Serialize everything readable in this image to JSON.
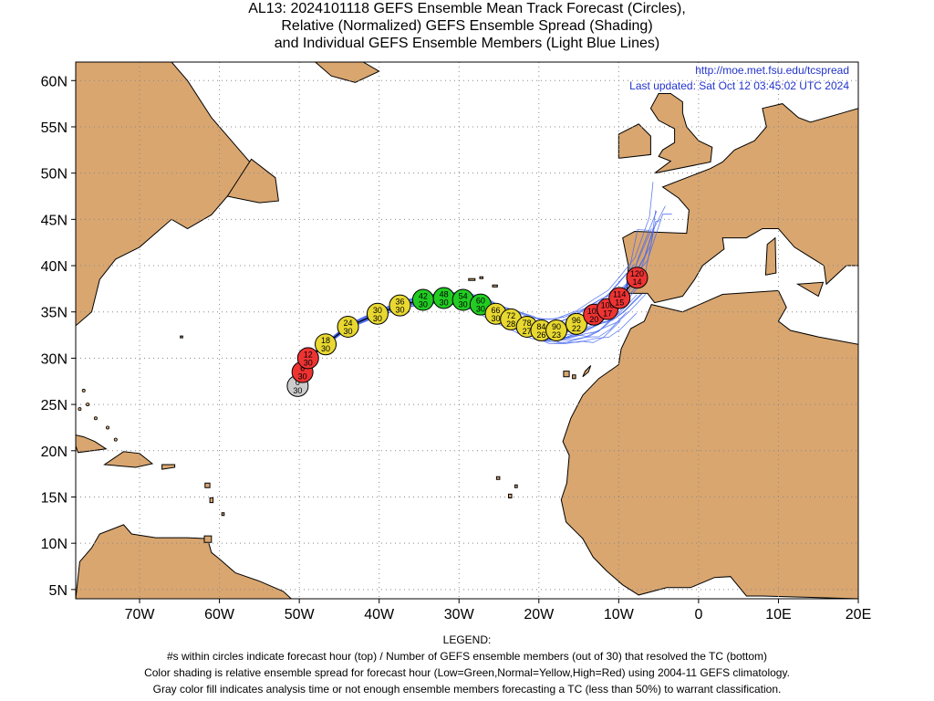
{
  "title": {
    "line1": "AL13: 2024101118 GEFS Ensemble Mean Track Forecast (Circles),",
    "line2": "Relative (Normalized) GEFS Ensemble Spread (Shading)",
    "line3": "and Individual GEFS Ensemble Members (Light Blue Lines)"
  },
  "info": {
    "url": "http://moe.met.fsu.edu/tcspread",
    "updated": "Last updated: Sat Oct 12 03:45:02 UTC 2024"
  },
  "axes": {
    "lat_ticks": [
      {
        "value": 60,
        "label": "60N"
      },
      {
        "value": 55,
        "label": "55N"
      },
      {
        "value": 50,
        "label": "50N"
      },
      {
        "value": 45,
        "label": "45N"
      },
      {
        "value": 40,
        "label": "40N"
      },
      {
        "value": 35,
        "label": "35N"
      },
      {
        "value": 30,
        "label": "30N"
      },
      {
        "value": 25,
        "label": "25N"
      },
      {
        "value": 20,
        "label": "20N"
      },
      {
        "value": 15,
        "label": "15N"
      },
      {
        "value": 10,
        "label": "10N"
      },
      {
        "value": 5,
        "label": "5N"
      }
    ],
    "lon_ticks": [
      {
        "value": -70,
        "label": "70W"
      },
      {
        "value": -60,
        "label": "60W"
      },
      {
        "value": -50,
        "label": "50W"
      },
      {
        "value": -40,
        "label": "40W"
      },
      {
        "value": -30,
        "label": "30W"
      },
      {
        "value": -20,
        "label": "20W"
      },
      {
        "value": -10,
        "label": "10W"
      },
      {
        "value": 0,
        "label": "0"
      },
      {
        "value": 10,
        "label": "10E"
      },
      {
        "value": 20,
        "label": "20E"
      }
    ],
    "lon_range": [
      -78,
      20
    ],
    "lat_range": [
      4,
      62
    ],
    "grid": true
  },
  "colors": {
    "land": "#d9a670",
    "coast": "#000000",
    "member_lines": "#4466ee",
    "low": "#22cc22",
    "normal": "#e8d830",
    "high": "#ee3333",
    "gray": "#cccccc"
  },
  "track": [
    {
      "hour": "0",
      "members": "30",
      "lon": -50.2,
      "lat": 27.0,
      "spread": "gray"
    },
    {
      "hour": "6",
      "members": "30",
      "lon": -49.6,
      "lat": 28.5,
      "spread": "high"
    },
    {
      "hour": "12",
      "members": "30",
      "lon": -48.9,
      "lat": 30.0,
      "spread": "high"
    },
    {
      "hour": "18",
      "members": "30",
      "lon": -46.7,
      "lat": 31.5,
      "spread": "normal"
    },
    {
      "hour": "24",
      "members": "30",
      "lon": -43.9,
      "lat": 33.4,
      "spread": "normal"
    },
    {
      "hour": "30",
      "members": "30",
      "lon": -40.2,
      "lat": 34.8,
      "spread": "normal"
    },
    {
      "hour": "36",
      "members": "30",
      "lon": -37.4,
      "lat": 35.7,
      "spread": "normal"
    },
    {
      "hour": "42",
      "members": "30",
      "lon": -34.5,
      "lat": 36.3,
      "spread": "low"
    },
    {
      "hour": "48",
      "members": "30",
      "lon": -31.9,
      "lat": 36.5,
      "spread": "low"
    },
    {
      "hour": "54",
      "members": "30",
      "lon": -29.5,
      "lat": 36.3,
      "spread": "low"
    },
    {
      "hour": "60",
      "members": "30",
      "lon": -27.3,
      "lat": 35.8,
      "spread": "low"
    },
    {
      "hour": "66",
      "members": "30",
      "lon": -25.4,
      "lat": 34.8,
      "spread": "normal"
    },
    {
      "hour": "72",
      "members": "28",
      "lon": -23.5,
      "lat": 34.2,
      "spread": "normal"
    },
    {
      "hour": "78",
      "members": "27",
      "lon": -21.5,
      "lat": 33.4,
      "spread": "normal"
    },
    {
      "hour": "84",
      "members": "26",
      "lon": -19.7,
      "lat": 33.0,
      "spread": "normal"
    },
    {
      "hour": "90",
      "members": "23",
      "lon": -17.8,
      "lat": 33.0,
      "spread": "normal"
    },
    {
      "hour": "96",
      "members": "22",
      "lon": -15.3,
      "lat": 33.7,
      "spread": "normal"
    },
    {
      "hour": "102",
      "members": "20",
      "lon": -13.1,
      "lat": 34.7,
      "spread": "high"
    },
    {
      "hour": "108",
      "members": "17",
      "lon": -11.4,
      "lat": 35.3,
      "spread": "high"
    },
    {
      "hour": "114",
      "members": "15",
      "lon": -9.9,
      "lat": 36.5,
      "spread": "high"
    },
    {
      "hour": "120",
      "members": "14",
      "lon": -7.7,
      "lat": 38.7,
      "spread": "high"
    }
  ],
  "legend": {
    "heading": "LEGEND:",
    "line1": "#s within circles indicate forecast hour (top) / Number of GEFS ensemble members (out of 30) that resolved the TC (bottom)",
    "line2": "Color shading is relative ensemble spread for forecast hour (Low=Green,Normal=Yellow,High=Red) using 2004-11 GEFS climatology.",
    "line3": "Gray color fill indicates analysis time or not enough ensemble members forecasting a TC (less than 50%) to warrant classification."
  }
}
